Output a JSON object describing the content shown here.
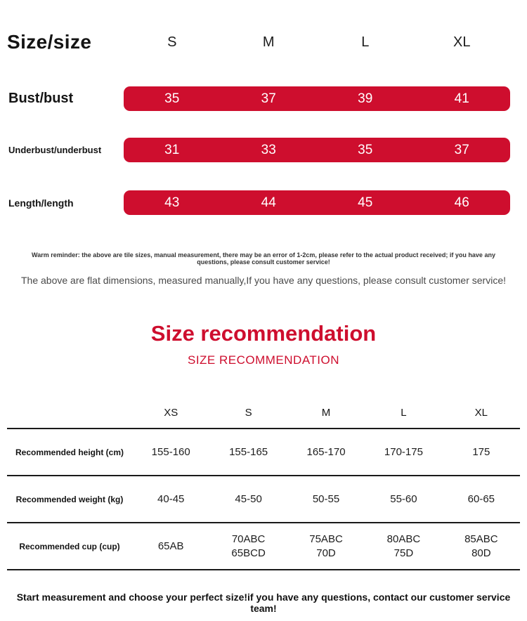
{
  "colors": {
    "accent": "#ce0e2e"
  },
  "size_table": {
    "title": "Size/size",
    "columns": [
      "S",
      "M",
      "L",
      "XL"
    ],
    "rows": [
      {
        "label": "Bust/bust",
        "values": [
          "35",
          "37",
          "39",
          "41"
        ]
      },
      {
        "label": "Underbust/underbust",
        "values": [
          "31",
          "33",
          "35",
          "37"
        ]
      },
      {
        "label": "Length/length",
        "values": [
          "43",
          "44",
          "45",
          "46"
        ]
      }
    ],
    "warm_reminder": "Warm reminder: the above are tile sizes, manual measurement, there may be an error of 1-2cm, please refer to the actual product received; if you have any questions, please consult customer service!",
    "note": "The above are flat dimensions, measured manually,If you have any questions, please consult customer service!"
  },
  "recommendation": {
    "title": "Size recommendation",
    "subtitle": "SIZE RECOMMENDATION",
    "columns": [
      "XS",
      "S",
      "M",
      "L",
      "XL"
    ],
    "rows": [
      {
        "label": "Recommended height (cm)",
        "values": [
          "155-160",
          "155-165",
          "165-170",
          "170-175",
          "175"
        ]
      },
      {
        "label": "Recommended weight (kg)",
        "values": [
          "40-45",
          "45-50",
          "50-55",
          "55-60",
          "60-65"
        ]
      },
      {
        "label": "Recommended cup (cup)",
        "values": [
          "65AB",
          "70ABC\n65BCD",
          "75ABC\n70D",
          "80ABC\n75D",
          "85ABC\n80D"
        ]
      }
    ]
  },
  "footer": "Start measurement and choose your perfect size!if you have any questions, contact our customer service team!"
}
